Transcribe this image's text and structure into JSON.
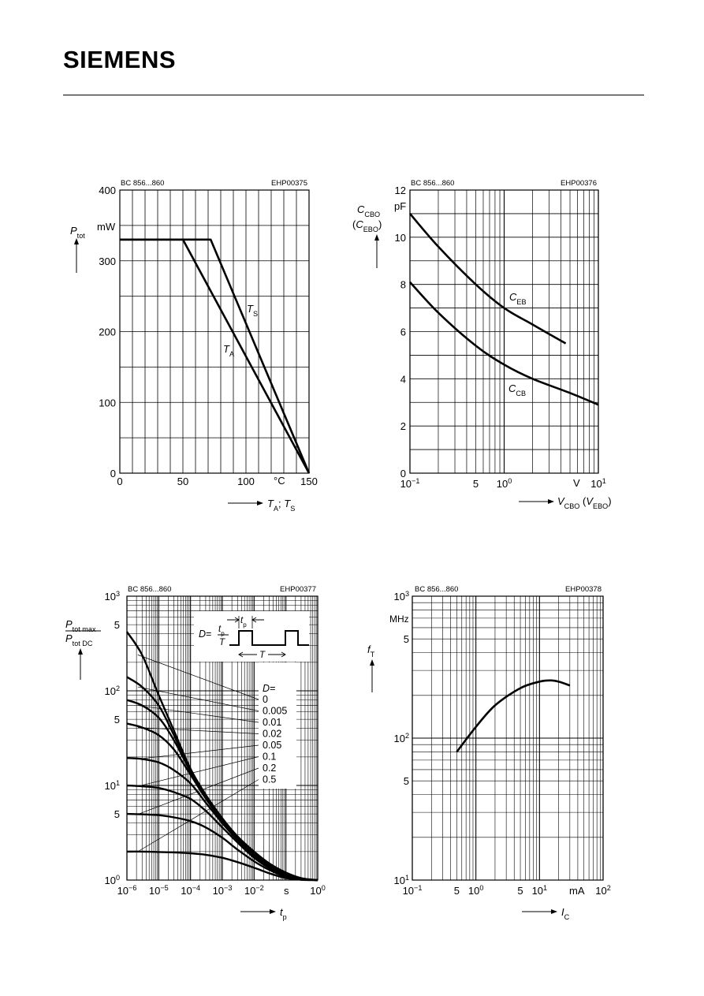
{
  "header": {
    "logo": "SIEMENS"
  },
  "chart_data": [
    {
      "type": "line",
      "part": "BC 856...860",
      "code": "EHP00375",
      "ylabel": "P",
      "ylabel_sub": "tot",
      "yunit": "mW",
      "xunit": "°C",
      "xlabel_a": "T",
      "xlabel_a_sub": "A",
      "xlabel_sep": "; ",
      "xlabel_b": "T",
      "xlabel_b_sub": "S",
      "xlim": [
        0,
        150
      ],
      "ylim": [
        0,
        400
      ],
      "xticks": [
        0,
        50,
        100,
        150
      ],
      "yticks": [
        0,
        100,
        200,
        300,
        400
      ],
      "series": [
        {
          "name": "T",
          "name_sub": "S",
          "x": [
            0,
            72,
            150
          ],
          "y": [
            330,
            330,
            0
          ]
        },
        {
          "name": "T",
          "name_sub": "A",
          "x": [
            0,
            50,
            150
          ],
          "y": [
            330,
            330,
            0
          ]
        }
      ]
    },
    {
      "type": "line",
      "part": "BC 856...860",
      "code": "EHP00376",
      "ylabel_a": "C",
      "ylabel_a_sub": "CBO",
      "ylabel_b": "C",
      "ylabel_b_sub": "EBO",
      "yunit": "pF",
      "xunit": "V",
      "xlabel_a": "V",
      "xlabel_a_sub": "CBO",
      "xlabel_b": "V",
      "xlabel_b_sub": "EBO",
      "xscale": "log",
      "xlim": [
        0.1,
        10
      ],
      "ylim": [
        0,
        12
      ],
      "xticks": [
        {
          "value": 0.1,
          "base": "10",
          "exp": "−1"
        },
        {
          "value": 0.5,
          "label": "5"
        },
        {
          "value": 1,
          "base": "10",
          "exp": "0"
        },
        {
          "value": 10,
          "base": "10",
          "exp": "1"
        }
      ],
      "yticks": [
        0,
        2,
        4,
        6,
        8,
        10,
        12
      ],
      "series": [
        {
          "name": "C",
          "name_sub": "EB",
          "x": [
            0.1,
            0.2,
            0.5,
            1,
            2,
            4.5
          ],
          "y": [
            11.0,
            9.6,
            8.0,
            7.0,
            6.3,
            5.5
          ]
        },
        {
          "name": "C",
          "name_sub": "CB",
          "x": [
            0.1,
            0.2,
            0.5,
            1,
            2,
            5,
            10
          ],
          "y": [
            8.1,
            6.8,
            5.4,
            4.6,
            4.0,
            3.4,
            2.9
          ]
        }
      ]
    },
    {
      "type": "line",
      "part": "BC 856...860",
      "code": "EHP00377",
      "ylabel_num": "P",
      "ylabel_num_sub": "tot max",
      "ylabel_den": "P",
      "ylabel_den_sub": "tot DC",
      "xunit": "s",
      "xlabel": "t",
      "xlabel_sub": "p",
      "xscale": "log",
      "yscale": "log",
      "xlim": [
        1e-06,
        1
      ],
      "ylim": [
        1,
        1000
      ],
      "xticks": [
        {
          "value": 1e-06,
          "base": "10",
          "exp": "−6"
        },
        {
          "value": 1e-05,
          "base": "10",
          "exp": "−5"
        },
        {
          "value": 0.0001,
          "base": "10",
          "exp": "−4"
        },
        {
          "value": 0.001,
          "base": "10",
          "exp": "−3"
        },
        {
          "value": 0.01,
          "base": "10",
          "exp": "−2"
        },
        {
          "value": 1,
          "base": "10",
          "exp": "0"
        }
      ],
      "yticks": [
        {
          "value": 1,
          "base": "10",
          "exp": "0"
        },
        {
          "value": 5,
          "label": "5"
        },
        {
          "value": 10,
          "base": "10",
          "exp": "1"
        },
        {
          "value": 50,
          "label": "5"
        },
        {
          "value": 100,
          "base": "10",
          "exp": "2"
        },
        {
          "value": 500,
          "label": "5"
        },
        {
          "value": 1000,
          "base": "10",
          "exp": "3"
        }
      ],
      "inset": {
        "D": "D",
        "eq": "=",
        "num": "t",
        "num_sub": "p",
        "den": "T",
        "tp": "t",
        "tp_sub": "p",
        "T": "T"
      },
      "d_header": "D=",
      "series": [
        {
          "name": "0",
          "x": [
            1e-06,
            3e-06,
            1e-05,
            3e-05,
            0.0001,
            0.0003,
            0.001,
            0.003,
            0.01,
            0.03,
            0.1,
            0.3,
            1
          ],
          "y": [
            420,
            240,
            90,
            38,
            15,
            8,
            4.5,
            2.9,
            2.0,
            1.5,
            1.2,
            1.05,
            1
          ]
        },
        {
          "name": "0.005",
          "x": [
            1e-06,
            3e-06,
            1e-05,
            3e-05,
            0.0001,
            0.0003,
            0.001,
            0.003,
            0.01,
            0.03,
            0.1,
            0.3,
            1
          ],
          "y": [
            140,
            110,
            70,
            34,
            14.5,
            7.8,
            4.4,
            2.85,
            1.95,
            1.48,
            1.18,
            1.04,
            1
          ]
        },
        {
          "name": "0.01",
          "x": [
            1e-06,
            3e-06,
            1e-05,
            3e-05,
            0.0001,
            0.0003,
            0.001,
            0.003,
            0.01,
            0.03,
            0.1,
            0.3,
            1
          ],
          "y": [
            80,
            70,
            52,
            30,
            14,
            7.6,
            4.3,
            2.8,
            1.9,
            1.45,
            1.16,
            1.03,
            1
          ]
        },
        {
          "name": "0.02",
          "x": [
            1e-06,
            3e-06,
            1e-05,
            3e-05,
            0.0001,
            0.0003,
            0.001,
            0.003,
            0.01,
            0.03,
            0.1,
            0.3,
            1
          ],
          "y": [
            45,
            41,
            34,
            24,
            13,
            7.3,
            4.2,
            2.75,
            1.85,
            1.42,
            1.14,
            1.03,
            1
          ]
        },
        {
          "name": "0.05",
          "x": [
            1e-06,
            3e-06,
            1e-05,
            3e-05,
            0.0001,
            0.0003,
            0.001,
            0.003,
            0.01,
            0.03,
            0.1,
            0.3,
            1
          ],
          "y": [
            19.5,
            19,
            17.5,
            14.5,
            10.5,
            6.6,
            4.0,
            2.65,
            1.8,
            1.38,
            1.12,
            1.02,
            1
          ]
        },
        {
          "name": "0.1",
          "x": [
            1e-06,
            3e-06,
            1e-05,
            3e-05,
            0.0001,
            0.0003,
            0.001,
            0.003,
            0.01,
            0.03,
            0.1,
            0.3,
            1
          ],
          "y": [
            10,
            9.8,
            9.4,
            8.5,
            7.2,
            5.4,
            3.6,
            2.5,
            1.72,
            1.34,
            1.1,
            1.02,
            1
          ]
        },
        {
          "name": "0.2",
          "x": [
            1e-06,
            3e-06,
            1e-05,
            3e-05,
            0.0001,
            0.0003,
            0.001,
            0.003,
            0.01,
            0.03,
            0.1,
            0.3,
            1
          ],
          "y": [
            5,
            4.95,
            4.85,
            4.6,
            4.2,
            3.6,
            2.8,
            2.1,
            1.58,
            1.28,
            1.08,
            1.01,
            1
          ]
        },
        {
          "name": "0.5",
          "x": [
            1e-06,
            3e-06,
            1e-05,
            3e-05,
            0.0001,
            0.0003,
            0.001,
            0.003,
            0.01,
            0.03,
            0.1,
            0.3,
            1
          ],
          "y": [
            2,
            2,
            1.98,
            1.96,
            1.92,
            1.85,
            1.72,
            1.55,
            1.35,
            1.18,
            1.05,
            1.01,
            1
          ]
        }
      ]
    },
    {
      "type": "line",
      "part": "BC 856...860",
      "code": "EHP00378",
      "ylabel": "f",
      "ylabel_sub": "T",
      "yunit": "MHz",
      "xunit": "mA",
      "xlabel": "I",
      "xlabel_sub": "C",
      "xscale": "log",
      "yscale": "log",
      "xlim": [
        0.1,
        100
      ],
      "ylim": [
        10,
        1000
      ],
      "xticks": [
        {
          "value": 0.1,
          "base": "10",
          "exp": "−1"
        },
        {
          "value": 0.5,
          "label": "5"
        },
        {
          "value": 1,
          "base": "10",
          "exp": "0"
        },
        {
          "value": 5,
          "label": "5"
        },
        {
          "value": 10,
          "base": "10",
          "exp": "1"
        },
        {
          "value": 100,
          "base": "10",
          "exp": "2"
        }
      ],
      "yticks": [
        {
          "value": 10,
          "base": "10",
          "exp": "1"
        },
        {
          "value": 50,
          "label": "5"
        },
        {
          "value": 100,
          "base": "10",
          "exp": "2"
        },
        {
          "value": 500,
          "label": "5"
        },
        {
          "value": 1000,
          "base": "10",
          "exp": "3"
        }
      ],
      "series": [
        {
          "name": "",
          "x": [
            0.5,
            1,
            2,
            5,
            10,
            15,
            20,
            30
          ],
          "y": [
            80,
            120,
            170,
            225,
            250,
            255,
            250,
            235
          ]
        }
      ]
    }
  ]
}
